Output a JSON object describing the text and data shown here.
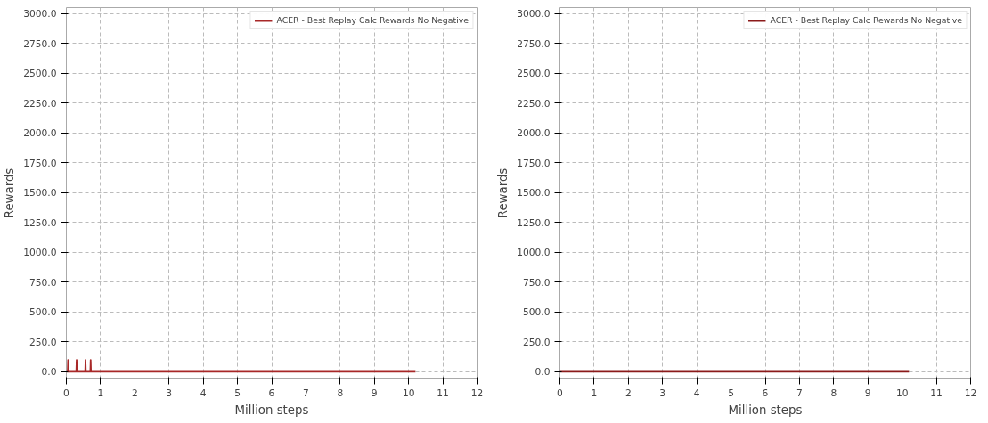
{
  "chart_data": [
    {
      "type": "line",
      "xlabel": "Million steps",
      "ylabel": "Rewards",
      "xlim": [
        0,
        12
      ],
      "ylim": [
        -60,
        3050
      ],
      "xticks": [
        0,
        1,
        2,
        3,
        4,
        5,
        6,
        7,
        8,
        9,
        10,
        11,
        12
      ],
      "yticks": [
        {
          "value": 0,
          "label": "0.0"
        },
        {
          "value": 250,
          "label": "250.0"
        },
        {
          "value": 500,
          "label": "500.0"
        },
        {
          "value": 750,
          "label": "750.0"
        },
        {
          "value": 1000,
          "label": "1000.0"
        },
        {
          "value": 1250,
          "label": "1250.0"
        },
        {
          "value": 1500,
          "label": "1500.0"
        },
        {
          "value": 1750,
          "label": "1750.0"
        },
        {
          "value": 2000,
          "label": "2000.0"
        },
        {
          "value": 2250,
          "label": "2250.0"
        },
        {
          "value": 2500,
          "label": "2500.0"
        },
        {
          "value": 2750,
          "label": "2750.0"
        },
        {
          "value": 3000,
          "label": "3000.0"
        }
      ],
      "grid": true,
      "legend": "top right",
      "series": [
        {
          "name": "ACER - Best Replay Calc Rewards No Negative",
          "color": "#a82828",
          "x": [
            0,
            0.04,
            0.05,
            0.06,
            0.29,
            0.3,
            0.31,
            0.55,
            0.56,
            0.57,
            0.7,
            0.71,
            0.72,
            2,
            4,
            6,
            8,
            10.2
          ],
          "values": [
            0,
            0,
            100,
            0,
            0,
            100,
            0,
            0,
            100,
            0,
            0,
            100,
            0,
            0,
            0,
            0,
            0,
            0
          ]
        }
      ]
    },
    {
      "type": "line",
      "xlabel": "Million steps",
      "ylabel": "Rewards",
      "xlim": [
        0,
        12
      ],
      "ylim": [
        -60,
        3050
      ],
      "xticks": [
        0,
        1,
        2,
        3,
        4,
        5,
        6,
        7,
        8,
        9,
        10,
        11,
        12
      ],
      "yticks": [
        {
          "value": 0,
          "label": "0.0"
        },
        {
          "value": 250,
          "label": "250.0"
        },
        {
          "value": 500,
          "label": "500.0"
        },
        {
          "value": 750,
          "label": "750.0"
        },
        {
          "value": 1000,
          "label": "1000.0"
        },
        {
          "value": 1250,
          "label": "1250.0"
        },
        {
          "value": 1500,
          "label": "1500.0"
        },
        {
          "value": 1750,
          "label": "1750.0"
        },
        {
          "value": 2000,
          "label": "2000.0"
        },
        {
          "value": 2250,
          "label": "2250.0"
        },
        {
          "value": 2500,
          "label": "2500.0"
        },
        {
          "value": 2750,
          "label": "2750.0"
        },
        {
          "value": 3000,
          "label": "3000.0"
        }
      ],
      "grid": true,
      "legend": "top right",
      "series": [
        {
          "name": "ACER - Best Replay Calc Rewards No Negative",
          "color": "#8b1a1a",
          "x": [
            0,
            2,
            4,
            6,
            8,
            10.2
          ],
          "values": [
            0,
            0,
            0,
            0,
            0,
            0
          ]
        }
      ]
    }
  ]
}
